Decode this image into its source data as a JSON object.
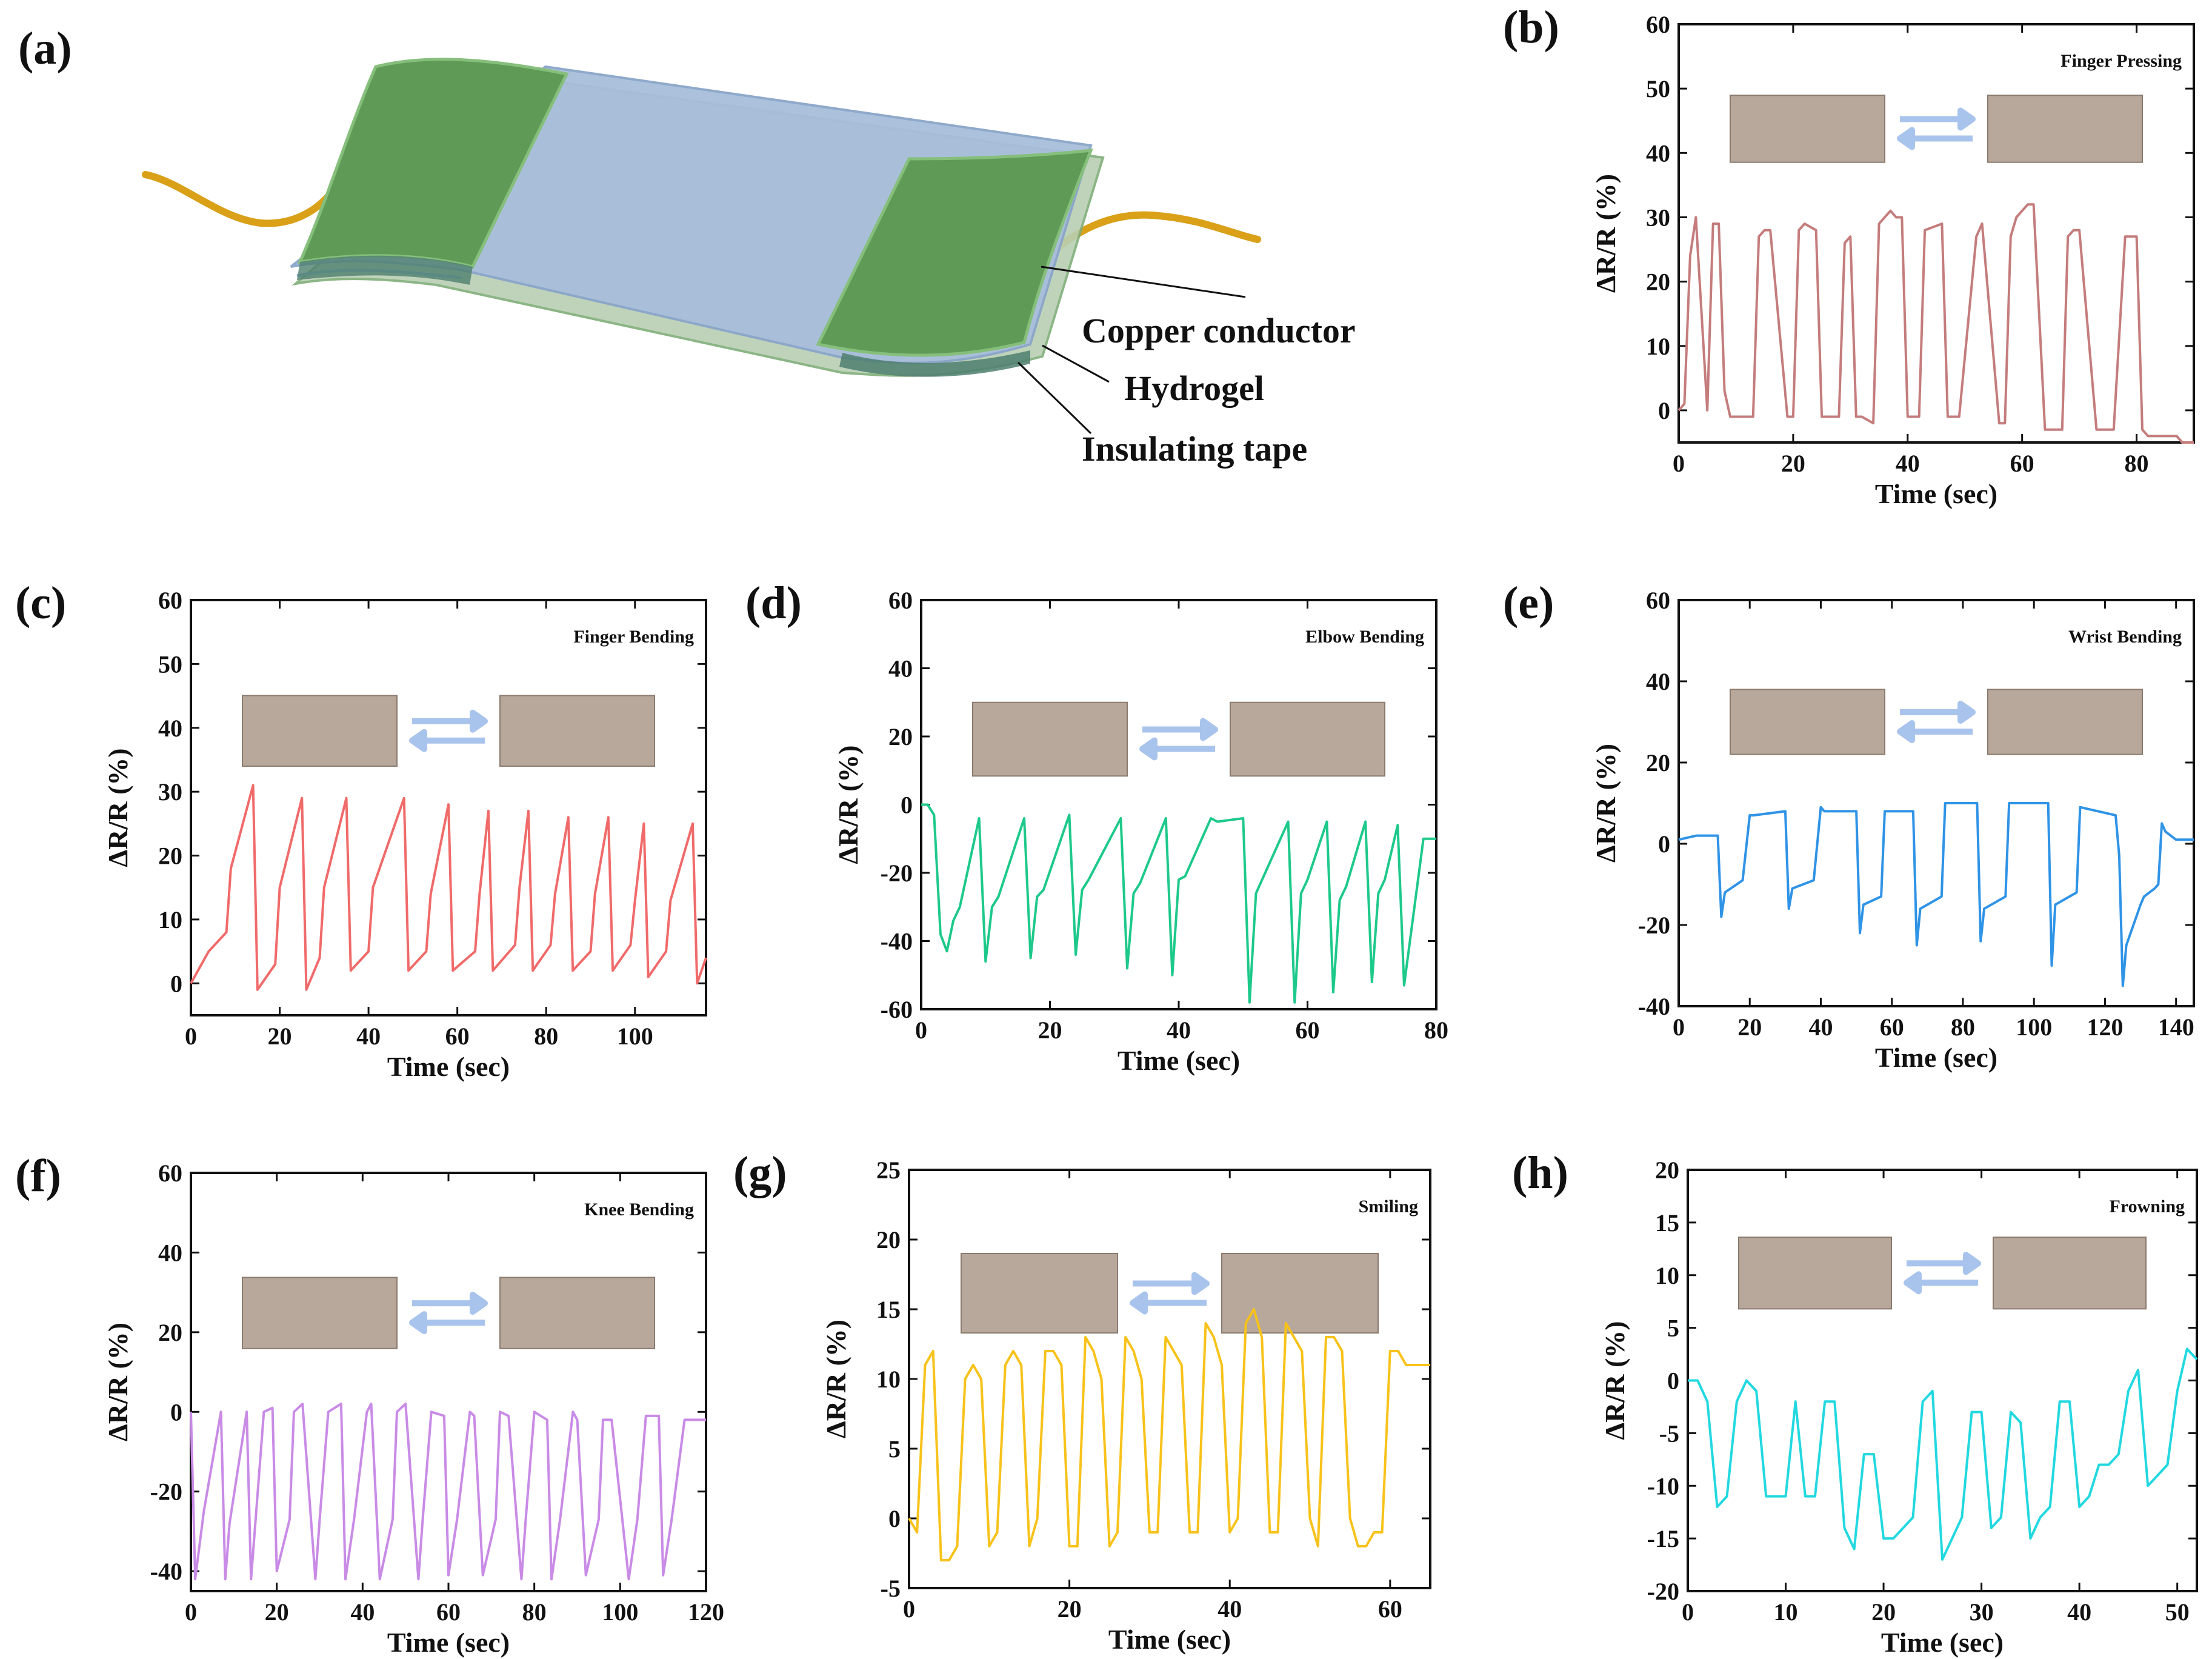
{
  "figure": {
    "panel_a": {
      "label": "(a)",
      "layers": [
        "Copper conductor",
        "Hydrogel",
        "Insulating tape"
      ]
    }
  },
  "colors": {
    "b": "#c47c7c",
    "c": "#f06a6a",
    "d": "#1dc98a",
    "e": "#2f93e6",
    "f": "#c98be6",
    "g": "#f7c21a",
    "h": "#22d8e0",
    "arrow": "#a9c4ec",
    "copper": "#d9a018",
    "electrode": "#5f9a56",
    "hydrogel": "#a8bedb"
  },
  "chart_data": [
    {
      "id": "b",
      "label": "(b)",
      "type": "line",
      "title": "Finger Pressing",
      "xlabel": "Time (sec)",
      "ylabel": "ΔR/R (%)",
      "xlim": [
        0,
        90
      ],
      "ylim": [
        -5,
        60
      ],
      "xticks": [
        0,
        20,
        40,
        60,
        80
      ],
      "yticks": [
        0,
        10,
        20,
        30,
        40,
        50,
        60
      ],
      "color": "#c47c7c",
      "x": [
        0,
        1,
        2,
        3,
        5,
        6,
        7,
        8,
        9,
        13,
        14,
        15,
        16,
        19,
        20,
        21,
        22,
        24,
        25,
        28,
        29,
        30,
        31,
        32,
        34,
        35,
        37,
        38,
        39,
        40,
        42,
        43,
        46,
        47,
        48,
        49,
        52,
        53,
        56,
        57,
        58,
        59,
        61,
        62,
        64,
        65,
        67,
        68,
        69,
        70,
        73,
        74,
        75,
        76,
        78,
        80,
        81,
        82,
        83,
        86,
        87,
        88,
        90
      ],
      "y": [
        0,
        1,
        24,
        30,
        0,
        29,
        29,
        3,
        -1,
        -1,
        27,
        28,
        28,
        -1,
        -1,
        28,
        29,
        28,
        -1,
        -1,
        26,
        27,
        -1,
        -1,
        -2,
        29,
        31,
        30,
        30,
        -1,
        -1,
        28,
        29,
        -1,
        -1,
        -1,
        27,
        29,
        -2,
        -2,
        27,
        30,
        32,
        32,
        -3,
        -3,
        -3,
        27,
        28,
        28,
        -3,
        -3,
        -3,
        -3,
        27,
        27,
        -3,
        -4,
        -4,
        -4,
        -4,
        -5,
        -5
      ]
    },
    {
      "id": "c",
      "label": "(c)",
      "type": "line",
      "title": "Finger Bending",
      "xlabel": "Time (sec)",
      "ylabel": "ΔR/R (%)",
      "xlim": [
        0,
        116
      ],
      "ylim": [
        -5,
        60
      ],
      "xticks": [
        0,
        20,
        40,
        60,
        80,
        100
      ],
      "yticks": [
        0,
        10,
        20,
        30,
        40,
        50,
        60
      ],
      "color": "#f06a6a",
      "x": [
        0,
        4,
        8,
        9,
        14,
        15,
        19,
        20,
        25,
        26,
        29,
        30,
        35,
        36,
        40,
        41,
        48,
        49,
        53,
        54,
        58,
        59,
        64,
        65,
        67,
        68,
        73,
        74,
        76,
        77,
        81,
        82,
        85,
        86,
        90,
        91,
        94,
        95,
        99,
        100,
        102,
        103,
        107,
        108,
        113,
        114,
        116
      ],
      "y": [
        0,
        5,
        8,
        18,
        31,
        -1,
        3,
        15,
        29,
        -1,
        4,
        15,
        29,
        2,
        5,
        15,
        29,
        2,
        5,
        14,
        28,
        2,
        5,
        14,
        27,
        2,
        6,
        15,
        27,
        2,
        6,
        14,
        26,
        2,
        5,
        14,
        26,
        2,
        6,
        13,
        25,
        1,
        5,
        13,
        25,
        0,
        4
      ]
    },
    {
      "id": "d",
      "label": "(d)",
      "type": "line",
      "title": "Elbow Bending",
      "xlabel": "Time (sec)",
      "ylabel": "ΔR/R (%)",
      "xlim": [
        0,
        80
      ],
      "ylim": [
        -60,
        60
      ],
      "xticks": [
        0,
        20,
        40,
        60,
        80
      ],
      "yticks": [
        -60,
        -40,
        -20,
        0,
        20,
        40,
        60
      ],
      "color": "#1dc98a",
      "x": [
        0,
        1,
        2,
        3,
        4,
        5,
        6,
        9,
        10,
        11,
        12,
        16,
        17,
        18,
        19,
        23,
        24,
        25,
        26,
        31,
        32,
        33,
        34,
        38,
        39,
        40,
        41,
        45,
        46,
        50,
        51,
        52,
        57,
        58,
        59,
        60,
        63,
        64,
        65,
        66,
        69,
        70,
        71,
        72,
        74,
        75,
        78,
        80
      ],
      "y": [
        0,
        0,
        -3,
        -38,
        -43,
        -34,
        -30,
        -4,
        -46,
        -30,
        -27,
        -4,
        -45,
        -27,
        -25,
        -3,
        -44,
        -25,
        -22,
        -4,
        -48,
        -26,
        -23,
        -4,
        -50,
        -22,
        -21,
        -4,
        -5,
        -4,
        -58,
        -26,
        -5,
        -58,
        -26,
        -22,
        -5,
        -55,
        -28,
        -24,
        -5,
        -52,
        -26,
        -22,
        -6,
        -53,
        -10,
        -10
      ]
    },
    {
      "id": "e",
      "label": "(e)",
      "type": "line",
      "title": "Wrist Bending",
      "xlabel": "Time (sec)",
      "ylabel": "ΔR/R (%)",
      "xlim": [
        0,
        145
      ],
      "ylim": [
        -40,
        60
      ],
      "xticks": [
        0,
        20,
        40,
        60,
        80,
        100,
        120,
        140
      ],
      "yticks": [
        -40,
        -20,
        0,
        20,
        40,
        60
      ],
      "color": "#2f93e6",
      "x": [
        0,
        5,
        11,
        12,
        13,
        18,
        20,
        21,
        30,
        31,
        32,
        38,
        40,
        41,
        50,
        51,
        52,
        57,
        58,
        66,
        67,
        68,
        74,
        75,
        84,
        85,
        86,
        92,
        93,
        104,
        105,
        106,
        112,
        113,
        123,
        124,
        125,
        126,
        130,
        131,
        134,
        135,
        136,
        137,
        140,
        145
      ],
      "y": [
        1,
        2,
        2,
        -18,
        -12,
        -9,
        7,
        7,
        8,
        -16,
        -11,
        -9,
        9,
        8,
        8,
        -22,
        -15,
        -13,
        8,
        8,
        -25,
        -16,
        -13,
        10,
        10,
        -24,
        -16,
        -13,
        10,
        10,
        -30,
        -15,
        -12,
        9,
        7,
        -3,
        -35,
        -25,
        -15,
        -13,
        -11,
        -10,
        5,
        3,
        1,
        1
      ]
    },
    {
      "id": "f",
      "label": "(f)",
      "type": "line",
      "title": "Knee Bending",
      "xlabel": "Time (sec)",
      "ylabel": "ΔR/R (%)",
      "xlim": [
        0,
        120
      ],
      "ylim": [
        -45,
        60
      ],
      "xticks": [
        0,
        20,
        40,
        60,
        80,
        100,
        120
      ],
      "yticks": [
        -40,
        -20,
        0,
        20,
        40,
        60
      ],
      "color": "#c98be6",
      "x": [
        0,
        1,
        3,
        7,
        8,
        9,
        13,
        14,
        15,
        17,
        19,
        20,
        23,
        24,
        26,
        29,
        30,
        32,
        35,
        36,
        38,
        41,
        42,
        44,
        47,
        48,
        50,
        53,
        54,
        56,
        59,
        60,
        62,
        65,
        66,
        68,
        71,
        72,
        74,
        77,
        78,
        80,
        83,
        84,
        86,
        89,
        90,
        92,
        95,
        96,
        98,
        102,
        104,
        106,
        109,
        110,
        112,
        115,
        117,
        120
      ],
      "y": [
        0,
        -42,
        -25,
        0,
        -42,
        -28,
        0,
        -42,
        -28,
        0,
        1,
        -40,
        -27,
        0,
        2,
        -42,
        -27,
        0,
        2,
        -42,
        -27,
        0,
        2,
        -42,
        -27,
        0,
        2,
        -42,
        -27,
        0,
        -1,
        -41,
        -27,
        0,
        -1,
        -41,
        -27,
        0,
        -1,
        -42,
        -27,
        0,
        -2,
        -42,
        -27,
        0,
        -2,
        -41,
        -27,
        -2,
        -2,
        -42,
        -27,
        -1,
        -1,
        -41,
        -27,
        -2,
        -2,
        -2
      ]
    },
    {
      "id": "g",
      "label": "(g)",
      "type": "line",
      "title": "Smiling",
      "xlabel": "Time (sec)",
      "ylabel": "ΔR/R (%)",
      "xlim": [
        0,
        65
      ],
      "ylim": [
        -5,
        25
      ],
      "xticks": [
        0,
        20,
        40,
        60
      ],
      "yticks": [
        -5,
        0,
        5,
        10,
        15,
        20,
        25
      ],
      "color": "#f7c21a",
      "x": [
        0,
        1,
        2,
        3,
        4,
        5,
        6,
        7,
        8,
        9,
        10,
        11,
        12,
        13,
        14,
        15,
        16,
        17,
        18,
        19,
        20,
        21,
        22,
        23,
        24,
        25,
        26,
        27,
        28,
        29,
        30,
        31,
        32,
        33,
        34,
        35,
        36,
        37,
        38,
        39,
        40,
        41,
        42,
        43,
        44,
        45,
        46,
        47,
        48,
        49,
        50,
        51,
        52,
        53,
        54,
        55,
        56,
        57,
        58,
        59,
        60,
        61,
        62,
        63,
        64,
        65
      ],
      "y": [
        0,
        -1,
        11,
        12,
        -3,
        -3,
        -2,
        10,
        11,
        10,
        -2,
        -1,
        11,
        12,
        11,
        -2,
        0,
        12,
        12,
        11,
        -2,
        -2,
        13,
        12,
        10,
        -2,
        -1,
        13,
        12,
        10,
        -1,
        -1,
        13,
        12,
        11,
        -1,
        -1,
        14,
        13,
        11,
        -1,
        0,
        14,
        15,
        13,
        -1,
        -1,
        14,
        13,
        12,
        0,
        -2,
        13,
        13,
        12,
        0,
        -2,
        -2,
        -1,
        -1,
        12,
        12,
        11,
        11,
        11,
        11
      ]
    },
    {
      "id": "h",
      "label": "(h)",
      "type": "line",
      "title": "Frowning",
      "xlabel": "Time (sec)",
      "ylabel": "ΔR/R (%)",
      "xlim": [
        0,
        52
      ],
      "ylim": [
        -20,
        20
      ],
      "xticks": [
        0,
        10,
        20,
        30,
        40,
        50
      ],
      "yticks": [
        -20,
        -15,
        -10,
        -5,
        0,
        5,
        10,
        15,
        20
      ],
      "color": "#22d8e0",
      "x": [
        0,
        1,
        2,
        3,
        4,
        5,
        6,
        7,
        8,
        9,
        10,
        11,
        12,
        13,
        14,
        15,
        16,
        17,
        18,
        19,
        20,
        21,
        22,
        23,
        24,
        25,
        26,
        27,
        28,
        29,
        30,
        31,
        32,
        33,
        34,
        35,
        36,
        37,
        38,
        39,
        40,
        41,
        42,
        43,
        44,
        45,
        46,
        47,
        48,
        49,
        50,
        51,
        52
      ],
      "y": [
        0,
        0,
        -2,
        -12,
        -11,
        -2,
        0,
        -1,
        -11,
        -11,
        -11,
        -2,
        -11,
        -11,
        -2,
        -2,
        -14,
        -16,
        -7,
        -7,
        -15,
        -15,
        -14,
        -13,
        -2,
        -1,
        -17,
        -15,
        -13,
        -3,
        -3,
        -14,
        -13,
        -3,
        -4,
        -15,
        -13,
        -12,
        -2,
        -2,
        -12,
        -11,
        -8,
        -8,
        -7,
        -1,
        1,
        -10,
        -9,
        -8,
        -1,
        3,
        2
      ]
    }
  ]
}
